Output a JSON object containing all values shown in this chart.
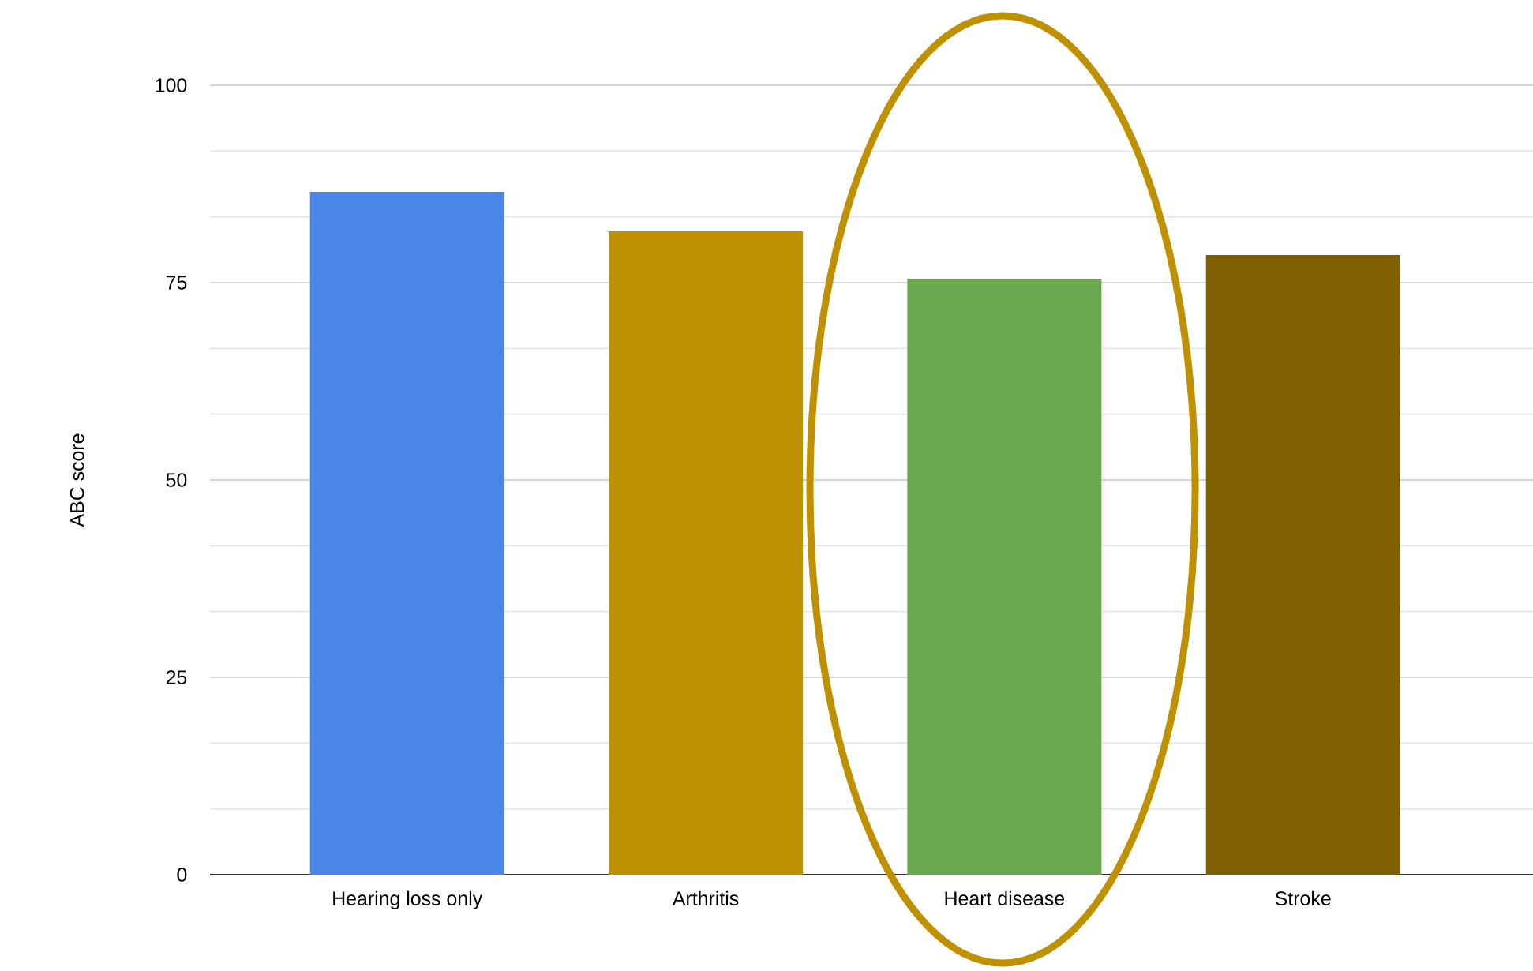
{
  "chart_data": {
    "type": "bar",
    "ylabel": "ABC score",
    "categories": [
      "Hearing loss only",
      "Arthritis",
      "Heart disease",
      "Stroke"
    ],
    "values": [
      86.5,
      81.5,
      75.5,
      78.5
    ],
    "colors": [
      "#4a86e8",
      "#bf9000",
      "#6aa84f",
      "#7f6000"
    ],
    "ylim": [
      0,
      100
    ],
    "yticks": [
      0,
      25,
      50,
      75,
      100
    ],
    "grid": "y"
  }
}
